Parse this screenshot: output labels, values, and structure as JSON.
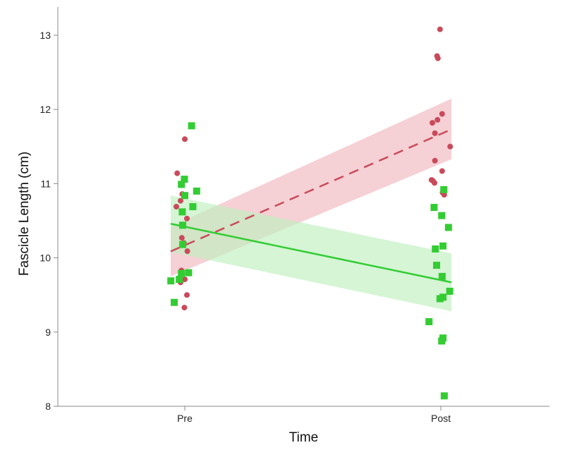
{
  "chart_data": {
    "type": "scatter",
    "title": "",
    "xlabel": "Time",
    "ylabel": "Fascicle Length (cm)",
    "categories": [
      "Pre",
      "Post"
    ],
    "ylim": [
      8,
      13.3
    ],
    "yticks": [
      8,
      9,
      10,
      11,
      12,
      13
    ],
    "grid": false,
    "legend": "none",
    "series": [
      {
        "color": "#c94a5a",
        "band_color": "#f0b7bf",
        "marker": "circle",
        "line_style": "dashed",
        "trend": {
          "Pre": 10.17,
          "Post": 11.67
        },
        "band": {
          "Pre": [
            9.83,
            10.51
          ],
          "Post": [
            11.27,
            12.08
          ]
        },
        "points": [
          {
            "x": "Pre",
            "jitter": -0.18,
            "y": 11.14
          },
          {
            "x": "Pre",
            "jitter": -0.1,
            "y": 10.77
          },
          {
            "x": "Pre",
            "jitter": -0.06,
            "y": 10.86
          },
          {
            "x": "Pre",
            "jitter": -0.2,
            "y": 10.69
          },
          {
            "x": "Pre",
            "jitter": -0.07,
            "y": 10.27
          },
          {
            "x": "Pre",
            "jitter": 0.05,
            "y": 10.53
          },
          {
            "x": "Pre",
            "jitter": 0.06,
            "y": 10.09
          },
          {
            "x": "Pre",
            "jitter": -0.02,
            "y": 10.2
          },
          {
            "x": "Pre",
            "jitter": -0.08,
            "y": 9.83
          },
          {
            "x": "Pre",
            "jitter": -0.06,
            "y": 9.79
          },
          {
            "x": "Pre",
            "jitter": -0.1,
            "y": 9.67
          },
          {
            "x": "Pre",
            "jitter": 0.0,
            "y": 9.71
          },
          {
            "x": "Pre",
            "jitter": 0.05,
            "y": 9.5
          },
          {
            "x": "Pre",
            "jitter": -0.01,
            "y": 9.33
          },
          {
            "x": "Pre",
            "jitter": 0.0,
            "y": 11.6
          },
          {
            "x": "Post",
            "jitter": -0.02,
            "y": 13.08
          },
          {
            "x": "Post",
            "jitter": -0.09,
            "y": 12.72
          },
          {
            "x": "Post",
            "jitter": -0.07,
            "y": 12.69
          },
          {
            "x": "Post",
            "jitter": -0.2,
            "y": 11.82
          },
          {
            "x": "Post",
            "jitter": -0.08,
            "y": 11.86
          },
          {
            "x": "Post",
            "jitter": 0.03,
            "y": 11.94
          },
          {
            "x": "Post",
            "jitter": -0.14,
            "y": 11.68
          },
          {
            "x": "Post",
            "jitter": 0.22,
            "y": 11.5
          },
          {
            "x": "Post",
            "jitter": -0.14,
            "y": 11.31
          },
          {
            "x": "Post",
            "jitter": 0.03,
            "y": 11.17
          },
          {
            "x": "Post",
            "jitter": -0.22,
            "y": 11.05
          },
          {
            "x": "Post",
            "jitter": -0.19,
            "y": 11.04
          },
          {
            "x": "Post",
            "jitter": -0.15,
            "y": 11.01
          },
          {
            "x": "Post",
            "jitter": 0.04,
            "y": 10.88
          },
          {
            "x": "Post",
            "jitter": 0.08,
            "y": 10.85
          }
        ]
      },
      {
        "color": "#33cc33",
        "band_color": "#bff0bf",
        "marker": "square",
        "line_style": "solid",
        "trend": {
          "Pre": 10.42,
          "Post": 9.7
        },
        "band": {
          "Pre": [
            10.04,
            10.8
          ],
          "Post": [
            9.31,
            10.09
          ]
        },
        "points": [
          {
            "x": "Pre",
            "jitter": 0.16,
            "y": 11.78
          },
          {
            "x": "Pre",
            "jitter": -0.01,
            "y": 11.06
          },
          {
            "x": "Pre",
            "jitter": -0.08,
            "y": 10.99
          },
          {
            "x": "Pre",
            "jitter": 0.0,
            "y": 10.84
          },
          {
            "x": "Pre",
            "jitter": 0.28,
            "y": 10.9
          },
          {
            "x": "Pre",
            "jitter": 0.19,
            "y": 10.69
          },
          {
            "x": "Pre",
            "jitter": -0.06,
            "y": 10.62
          },
          {
            "x": "Pre",
            "jitter": -0.05,
            "y": 10.44
          },
          {
            "x": "Pre",
            "jitter": -0.05,
            "y": 10.18
          },
          {
            "x": "Pre",
            "jitter": -0.08,
            "y": 9.79
          },
          {
            "x": "Pre",
            "jitter": 0.09,
            "y": 9.8
          },
          {
            "x": "Pre",
            "jitter": -0.13,
            "y": 9.71
          },
          {
            "x": "Pre",
            "jitter": -0.33,
            "y": 9.69
          },
          {
            "x": "Pre",
            "jitter": -0.25,
            "y": 9.4
          },
          {
            "x": "Post",
            "jitter": 0.07,
            "y": 10.92
          },
          {
            "x": "Post",
            "jitter": -0.16,
            "y": 10.68
          },
          {
            "x": "Post",
            "jitter": 0.02,
            "y": 10.57
          },
          {
            "x": "Post",
            "jitter": 0.18,
            "y": 10.41
          },
          {
            "x": "Post",
            "jitter": 0.05,
            "y": 10.16
          },
          {
            "x": "Post",
            "jitter": -0.13,
            "y": 10.12
          },
          {
            "x": "Post",
            "jitter": -0.1,
            "y": 9.9
          },
          {
            "x": "Post",
            "jitter": 0.03,
            "y": 9.75
          },
          {
            "x": "Post",
            "jitter": 0.21,
            "y": 9.55
          },
          {
            "x": "Post",
            "jitter": 0.05,
            "y": 9.47
          },
          {
            "x": "Post",
            "jitter": -0.02,
            "y": 9.45
          },
          {
            "x": "Post",
            "jitter": -0.28,
            "y": 9.14
          },
          {
            "x": "Post",
            "jitter": 0.05,
            "y": 8.92
          },
          {
            "x": "Post",
            "jitter": 0.02,
            "y": 8.88
          },
          {
            "x": "Post",
            "jitter": 0.08,
            "y": 8.14
          }
        ]
      }
    ]
  }
}
